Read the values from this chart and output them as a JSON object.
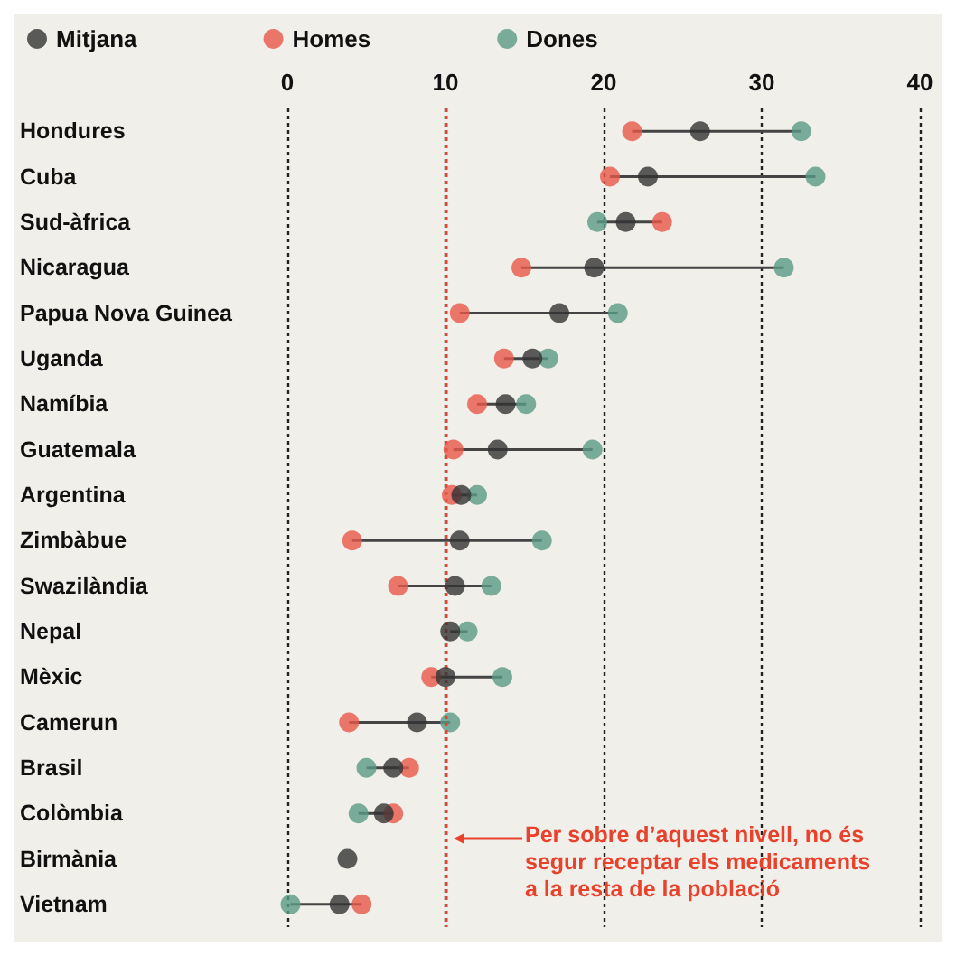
{
  "chart_data": {
    "type": "scatter",
    "orientation": "horizontal",
    "categories": [
      "Hondures",
      "Cuba",
      "Sud-àfrica",
      "Nicaragua",
      "Papua Nova Guinea",
      "Uganda",
      "Namíbia",
      "Guatemala",
      "Argentina",
      "Zimbàbue",
      "Swazilàndia",
      "Nepal",
      "Mèxic",
      "Camerun",
      "Brasil",
      "Colòmbia",
      "Birmània",
      "Vietnam"
    ],
    "series": [
      {
        "name": "Mitjana",
        "color": "#333333",
        "values": [
          26.1,
          22.8,
          21.4,
          19.4,
          17.2,
          15.5,
          13.8,
          13.3,
          11.0,
          10.9,
          10.6,
          10.3,
          10.0,
          8.2,
          6.7,
          6.1,
          3.8,
          3.3
        ]
      },
      {
        "name": "Homes",
        "color": "#e8584a",
        "values": [
          21.8,
          20.4,
          23.7,
          14.8,
          10.9,
          13.7,
          12.0,
          10.5,
          10.4,
          4.1,
          7.0,
          null,
          9.1,
          3.9,
          7.7,
          6.7,
          null,
          4.7
        ]
      },
      {
        "name": "Dones",
        "color": "#5a9a86",
        "values": [
          32.5,
          33.4,
          19.6,
          31.4,
          20.9,
          16.5,
          15.1,
          19.3,
          12.0,
          16.1,
          12.9,
          11.4,
          13.6,
          10.3,
          5.0,
          4.5,
          null,
          0.2
        ]
      }
    ],
    "xlim": [
      0,
      40
    ],
    "xticks": [
      0,
      10,
      20,
      30,
      40
    ],
    "grid": "x",
    "legend": "top left",
    "marker": "circle",
    "ref_lines": [
      {
        "axis": "x",
        "value": 10,
        "label": "Per sobre d’aquest nivell, no és segur receptar els medicaments a la resta de la població",
        "color": "#e8412c",
        "line_style": "dotted"
      }
    ]
  }
}
